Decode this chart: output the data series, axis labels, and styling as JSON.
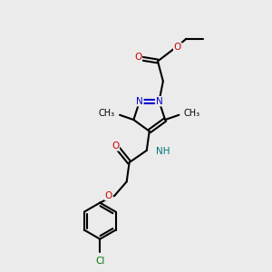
{
  "bg_color": "#ebebeb",
  "bond_color": "#000000",
  "N_color": "#0000cc",
  "O_color": "#cc0000",
  "Cl_color": "#007700",
  "NH_color": "#007777",
  "line_width": 1.5,
  "font_size": 7.5,
  "figsize": [
    3.0,
    3.0
  ],
  "dpi": 100,
  "xlim": [
    0,
    10
  ],
  "ylim": [
    0,
    10
  ]
}
